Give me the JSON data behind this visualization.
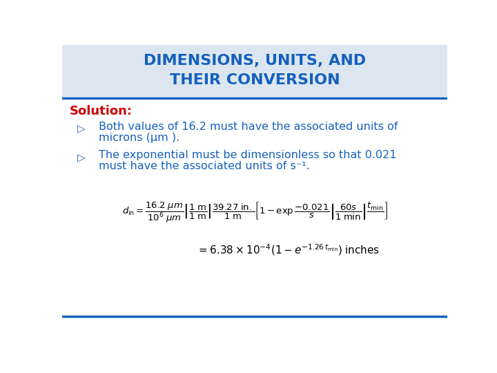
{
  "title_line1": "DIMENSIONS, UNITS, AND",
  "title_line2": "THEIR CONVERSION",
  "title_color": "#1560bd",
  "solution_label": "Solution:",
  "solution_color": "#cc0000",
  "bullet1_line1": "Both values of 16.2 must have the associated units of",
  "bullet1_line2": "microns (μm ).",
  "bullet2_line1": "The exponential must be dimensionless so that 0.021",
  "bullet2_line2": "must have the associated units of s⁻¹.",
  "text_color": "#1560bd",
  "bg_color": "#ffffff",
  "header_bg": "#dce6f1",
  "line_color": "#1560bd"
}
